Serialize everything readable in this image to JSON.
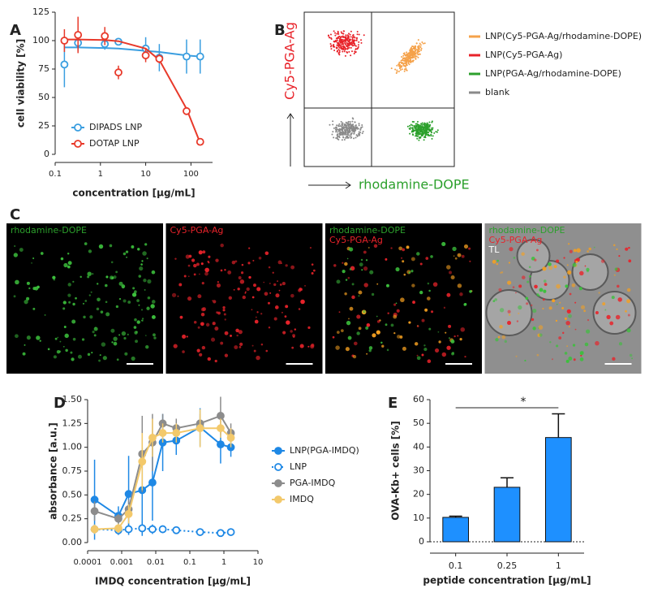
{
  "chart_data": [
    {
      "type": "line",
      "panel": "A",
      "ylabel": "cell viability [%]",
      "xlabel": "concentration [µg/mL]",
      "xscale": "log",
      "xlim": [
        0.1,
        300
      ],
      "xticks": [
        0.1,
        1,
        10,
        100
      ],
      "ylim": [
        0,
        125
      ],
      "yticks": [
        0,
        25,
        50,
        75,
        100,
        125
      ],
      "x": [
        0.16,
        0.32,
        1.25,
        2.5,
        10,
        20,
        80,
        160
      ],
      "legend": "lower left",
      "series": [
        {
          "name": "DIPADS LNP",
          "color": "#3a9ee0",
          "marker": "open",
          "values": [
            79,
            98,
            97,
            99,
            93,
            85,
            86,
            86
          ],
          "errors": [
            20,
            7,
            5,
            3,
            10,
            12,
            15,
            15
          ],
          "fit": [
            94,
            94,
            93.5,
            93,
            91,
            90,
            87,
            86
          ]
        },
        {
          "name": "DOTAP LNP",
          "color": "#e8392a",
          "marker": "open",
          "values": [
            100,
            105,
            104,
            72,
            87,
            84,
            38,
            11
          ],
          "errors": [
            10,
            16,
            8,
            6,
            6,
            4,
            3,
            3
          ],
          "fit": [
            101,
            101,
            100.5,
            99.5,
            93,
            83,
            40,
            10
          ]
        }
      ]
    },
    {
      "type": "scatter",
      "panel": "B",
      "xlabel": "rhodamine-DOPE",
      "ylabel": "Cy5-PGA-Ag",
      "xlabel_color": "#2ca02c",
      "ylabel_color": "#e8232a",
      "series": [
        {
          "name": "LNP(Cy5-PGA-Ag/rhodamine-DOPE)",
          "color": "#f5a24a"
        },
        {
          "name": "LNP(Cy5-PGA-Ag)",
          "color": "#e8232a"
        },
        {
          "name": "LNP(PGA-Ag/rhodamine-DOPE)",
          "color": "#2ca02c"
        },
        {
          "name": "blank",
          "color": "#8a8a8a"
        }
      ]
    },
    {
      "type": "line",
      "panel": "D",
      "ylabel": "absorbance [a.u.]",
      "xlabel": "IMDQ concentration [µg/mL]",
      "xscale": "log",
      "xlim": [
        0.0001,
        10
      ],
      "xticks": [
        0.0001,
        0.001,
        0.01,
        0.1,
        1,
        10
      ],
      "ylim": [
        0,
        1.5
      ],
      "yticks": [
        {
          "value": 0,
          "label": "0.00"
        },
        {
          "value": 0.25,
          "label": "0.25"
        },
        {
          "value": 0.5,
          "label": "0.50"
        },
        {
          "value": 0.75,
          "label": "0.75"
        },
        {
          "value": 1,
          "label": "1.00"
        },
        {
          "value": 1.25,
          "label": "1.25"
        },
        {
          "value": 1.5,
          "label": "1.50"
        }
      ],
      "x": [
        0.00016,
        0.0008,
        0.0016,
        0.004,
        0.008,
        0.016,
        0.04,
        0.2,
        0.8,
        1.6
      ],
      "legend": "right",
      "series": [
        {
          "name": "LNP(PGA-IMDQ)",
          "color": "#1e88e5",
          "marker": "filled",
          "values": [
            0.45,
            0.28,
            0.51,
            0.55,
            0.63,
            1.05,
            1.07,
            1.21,
            1.03,
            1.0
          ],
          "errors": [
            0.42,
            0.1,
            0.4,
            0.45,
            0.4,
            0.3,
            0.15,
            0.2,
            0.2,
            0.1
          ]
        },
        {
          "name": "LNP",
          "color": "#1e88e5",
          "marker": "open",
          "dashed": true,
          "values": [
            0.14,
            0.13,
            0.14,
            0.15,
            0.14,
            0.14,
            0.13,
            0.11,
            0.1,
            0.11
          ],
          "errors": [
            0.05,
            0.05,
            0.06,
            0.08,
            0.05,
            0.04,
            0.03,
            0.02,
            0.02,
            0.02
          ]
        },
        {
          "name": "PGA-IMDQ",
          "color": "#8c8c8c",
          "marker": "filled",
          "values": [
            0.33,
            0.25,
            0.35,
            0.93,
            1.05,
            1.25,
            1.2,
            1.25,
            1.33,
            1.15
          ],
          "errors": [
            0.1,
            0.05,
            0.1,
            0.4,
            0.3,
            0.1,
            0.1,
            0.1,
            0.2,
            0.1
          ]
        },
        {
          "name": "IMDQ",
          "color": "#f3c96b",
          "marker": "filled",
          "values": [
            0.14,
            0.15,
            0.3,
            0.85,
            1.1,
            1.15,
            1.15,
            1.2,
            1.2,
            1.1
          ],
          "errors": [
            0.05,
            0.05,
            0.1,
            0.3,
            0.2,
            0.1,
            0.1,
            0.2,
            0.1,
            0.1
          ]
        }
      ]
    },
    {
      "type": "bar",
      "panel": "E",
      "ylabel": "OVA-Kb+ cells [%]",
      "xlabel": "peptide concentration [µg/mL]",
      "categories": [
        "0.1",
        "0.25",
        "1"
      ],
      "values": [
        10.3,
        23,
        44
      ],
      "errors": [
        0.5,
        4,
        10
      ],
      "color": "#1e90ff",
      "ylim": [
        0,
        60
      ],
      "yticks": [
        0,
        10,
        20,
        30,
        40,
        50,
        60
      ],
      "annotation": "*"
    }
  ],
  "panel_c": {
    "panel": "C",
    "tiles": [
      {
        "labels": [
          {
            "text": "rhodamine-DOPE",
            "color": "#2ca02c"
          }
        ]
      },
      {
        "labels": [
          {
            "text": "Cy5-PGA-Ag",
            "color": "#e8232a"
          }
        ]
      },
      {
        "labels": [
          {
            "text": "rhodamine-DOPE",
            "color": "#2ca02c"
          },
          {
            "text": "Cy5-PGA-Ag",
            "color": "#e8232a"
          }
        ]
      },
      {
        "labels": [
          {
            "text": "rhodamine-DOPE",
            "color": "#2ca02c"
          },
          {
            "text": "Cy5-PGA-Ag",
            "color": "#e8232a"
          },
          {
            "text": "TL",
            "color": "#ffffff"
          }
        ]
      }
    ]
  }
}
